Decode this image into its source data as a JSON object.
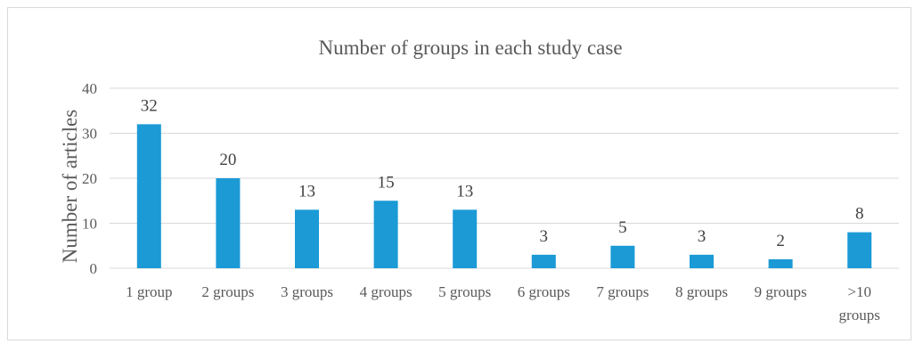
{
  "chart_data": {
    "type": "bar",
    "title": "Number of groups in each study case",
    "xlabel": "",
    "ylabel": "Number of articles",
    "ylim": [
      0,
      40
    ],
    "yticks": [
      0,
      10,
      20,
      30,
      40
    ],
    "grid": true,
    "legend": "none",
    "bar_color": "#1b9ad6",
    "categories": [
      [
        "1 group"
      ],
      [
        "2 groups"
      ],
      [
        "3 groups"
      ],
      [
        "4 groups"
      ],
      [
        "5 groups"
      ],
      [
        "6 groups"
      ],
      [
        "7 groups"
      ],
      [
        "8 groups"
      ],
      [
        "9 groups"
      ],
      [
        ">10",
        "groups"
      ]
    ],
    "values": [
      32,
      20,
      13,
      15,
      13,
      3,
      5,
      3,
      2,
      8
    ]
  }
}
